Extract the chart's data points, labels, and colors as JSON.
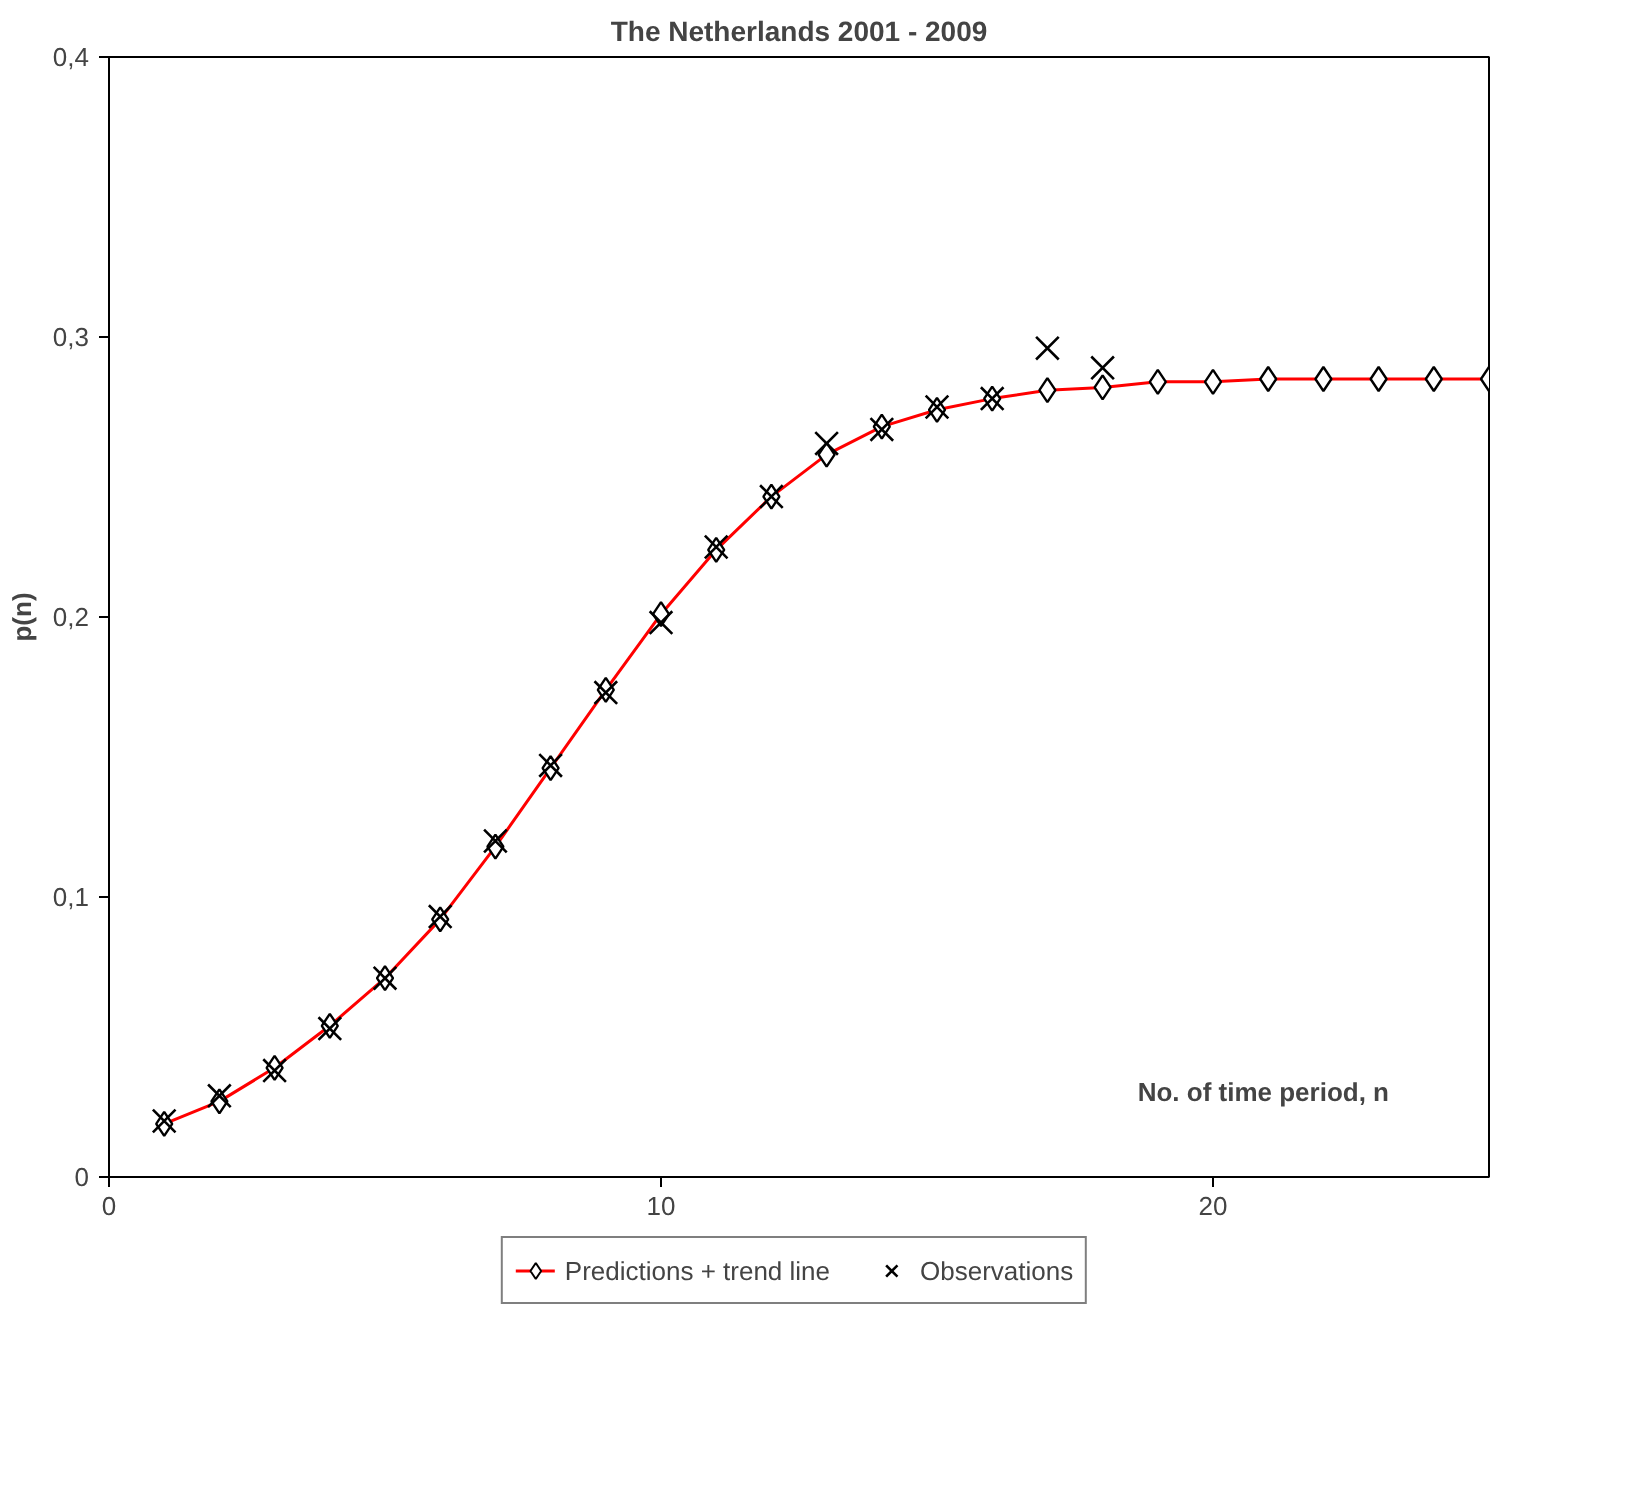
{
  "chart_data": {
    "type": "line",
    "title": "The Netherlands 2001 - 2009",
    "xlabel": "No. of time period, n",
    "ylabel": "p(n)",
    "xlim": [
      0,
      25
    ],
    "xticks": [
      0,
      10,
      20
    ],
    "ylim": [
      0,
      0.4
    ],
    "yticks": [
      0,
      {
        "value": 0.1,
        "label": "0,1"
      },
      {
        "value": 0.2,
        "label": "0,2"
      },
      {
        "value": 0.3,
        "label": "0,3"
      },
      {
        "value": 0.4,
        "label": "0,4"
      }
    ],
    "grid": false,
    "legend": "bottom",
    "series": [
      {
        "name": "Predictions + trend line",
        "marker": "diamond",
        "color": "#ff0000",
        "x": [
          1,
          2,
          3,
          4,
          5,
          6,
          7,
          8,
          9,
          10,
          11,
          12,
          13,
          14,
          15,
          16,
          17,
          18,
          19,
          20,
          21,
          22,
          23,
          24,
          25
        ],
        "values": [
          0.019,
          0.027,
          0.039,
          0.054,
          0.071,
          0.092,
          0.118,
          0.146,
          0.174,
          0.201,
          0.224,
          0.243,
          0.258,
          0.268,
          0.274,
          0.278,
          0.281,
          0.282,
          0.284,
          0.284,
          0.285,
          0.285,
          0.285,
          0.285,
          0.285
        ]
      },
      {
        "name": "Observations",
        "type": "scatter",
        "marker": "cross",
        "color": "#000000",
        "x": [
          1,
          2,
          3,
          4,
          5,
          6,
          7,
          8,
          9,
          10,
          11,
          12,
          13,
          14,
          15,
          16,
          17,
          18
        ],
        "values": [
          0.02,
          0.029,
          0.038,
          0.053,
          0.071,
          0.093,
          0.12,
          0.147,
          0.173,
          0.198,
          0.225,
          0.243,
          0.262,
          0.267,
          0.275,
          0.278,
          0.296,
          0.289
        ]
      }
    ]
  }
}
